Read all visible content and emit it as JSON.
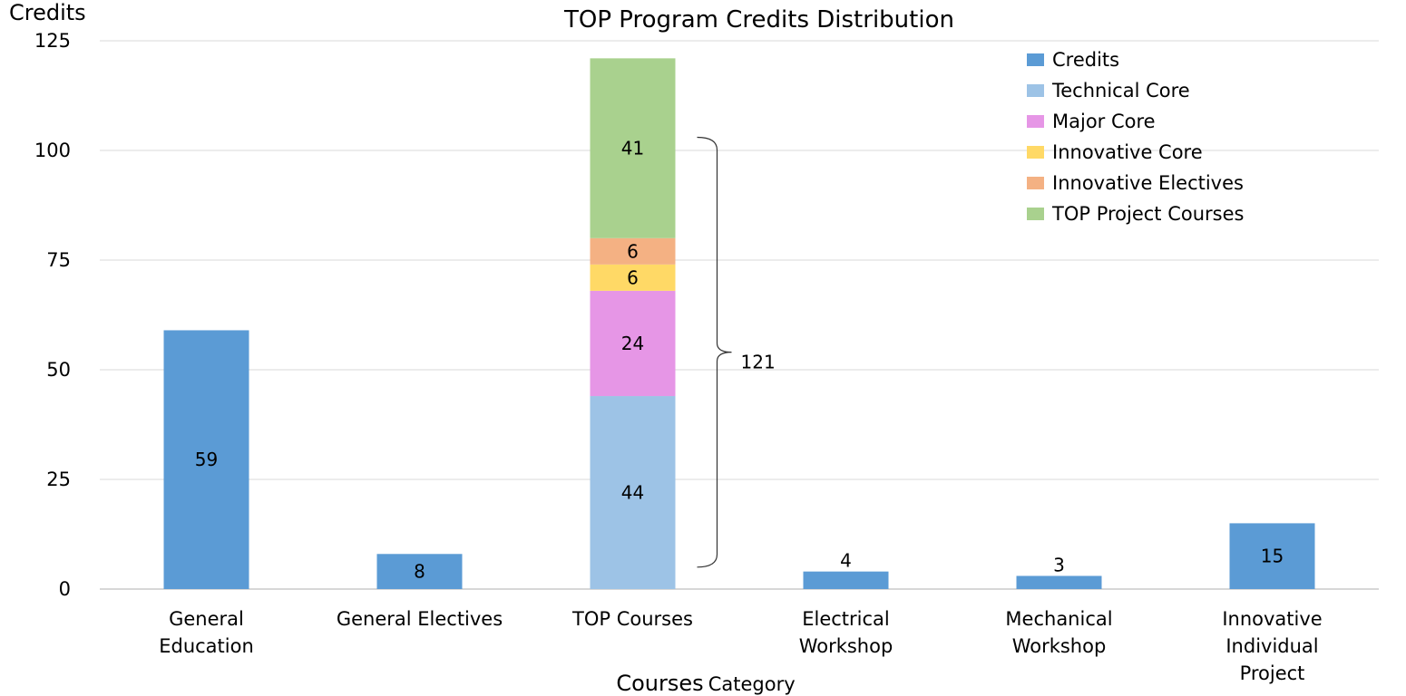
{
  "chart_data": {
    "type": "bar",
    "title": "TOP Program Credits Distribution",
    "ylabel": "Credits",
    "xlabel_main": "Courses",
    "xlabel_sub": "Category",
    "ylim": [
      0,
      125
    ],
    "yticks": [
      0,
      25,
      50,
      75,
      100,
      125
    ],
    "grid": true,
    "legend_position": "top-right",
    "categories": [
      [
        "General",
        "Education"
      ],
      [
        "General Electives"
      ],
      [
        "TOP Courses"
      ],
      [
        "Electrical",
        "Workshop"
      ],
      [
        "Mechanical",
        "Workshop"
      ],
      [
        "Innovative",
        "Individual",
        "Project"
      ]
    ],
    "series": [
      {
        "name": "Credits",
        "color": "#5b9bd5",
        "values": [
          59,
          8,
          null,
          4,
          3,
          15
        ]
      },
      {
        "name": "Technical Core",
        "color": "#9dc3e6",
        "values": [
          null,
          null,
          44,
          null,
          null,
          null
        ]
      },
      {
        "name": "Major Core",
        "color": "#e696e6",
        "values": [
          null,
          null,
          24,
          null,
          null,
          null
        ]
      },
      {
        "name": "Innovative Core",
        "color": "#ffd966",
        "values": [
          null,
          null,
          6,
          null,
          null,
          null
        ]
      },
      {
        "name": "Innovative Electives",
        "color": "#f4b183",
        "values": [
          null,
          null,
          6,
          null,
          null,
          null
        ]
      },
      {
        "name": "TOP Project Courses",
        "color": "#a9d18e",
        "values": [
          null,
          null,
          41,
          null,
          null,
          null
        ]
      }
    ],
    "annotations": [
      {
        "text": "121",
        "type": "brace",
        "spans_category": "TOP Courses",
        "from": 5,
        "to": 103
      }
    ]
  }
}
